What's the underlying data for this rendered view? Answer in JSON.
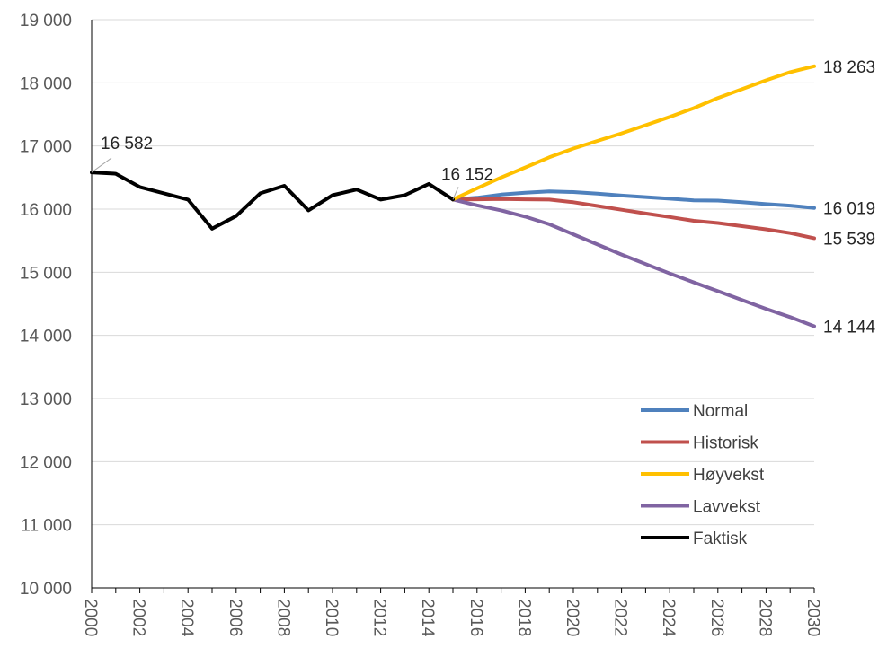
{
  "chart_data": {
    "type": "line",
    "title": "",
    "xlabel": "",
    "ylabel": "",
    "ylim": [
      10000,
      19000
    ],
    "xlim": [
      2000,
      2030
    ],
    "y_ticks": [
      "10 000",
      "11 000",
      "12 000",
      "13 000",
      "14 000",
      "15 000",
      "16 000",
      "17 000",
      "18 000",
      "19 000"
    ],
    "x_ticks": [
      "2000",
      "2002",
      "2004",
      "2006",
      "2008",
      "2010",
      "2012",
      "2014",
      "2016",
      "2018",
      "2020",
      "2022",
      "2024",
      "2026",
      "2028",
      "2030"
    ],
    "grid": "horizontal",
    "legend_position": "bottom-right",
    "series": [
      {
        "name": "Normal",
        "color": "#4F81BD",
        "x": [
          2015,
          2016,
          2017,
          2018,
          2019,
          2020,
          2021,
          2022,
          2023,
          2024,
          2025,
          2026,
          2027,
          2028,
          2029,
          2030
        ],
        "y": [
          16152,
          16180,
          16230,
          16260,
          16280,
          16270,
          16245,
          16215,
          16190,
          16165,
          16140,
          16135,
          16110,
          16080,
          16055,
          16019
        ]
      },
      {
        "name": "Historisk",
        "color": "#C0504D",
        "x": [
          2015,
          2016,
          2017,
          2018,
          2019,
          2020,
          2021,
          2022,
          2023,
          2024,
          2025,
          2026,
          2027,
          2028,
          2029,
          2030
        ],
        "y": [
          16152,
          16155,
          16160,
          16155,
          16150,
          16110,
          16050,
          15990,
          15930,
          15875,
          15815,
          15780,
          15730,
          15680,
          15620,
          15539
        ]
      },
      {
        "name": "Høyvekst",
        "color": "#FFC000",
        "x": [
          2015,
          2016,
          2017,
          2018,
          2019,
          2020,
          2021,
          2022,
          2023,
          2024,
          2025,
          2026,
          2027,
          2028,
          2029,
          2030
        ],
        "y": [
          16152,
          16330,
          16500,
          16660,
          16820,
          16960,
          17080,
          17200,
          17330,
          17460,
          17600,
          17760,
          17900,
          18040,
          18170,
          18263
        ]
      },
      {
        "name": "Lavvekst",
        "color": "#8064A2",
        "x": [
          2015,
          2016,
          2017,
          2018,
          2019,
          2020,
          2021,
          2022,
          2023,
          2024,
          2025,
          2026,
          2027,
          2028,
          2029,
          2030
        ],
        "y": [
          16152,
          16060,
          15980,
          15880,
          15760,
          15600,
          15440,
          15280,
          15130,
          14980,
          14840,
          14700,
          14560,
          14420,
          14290,
          14144
        ]
      },
      {
        "name": "Faktisk",
        "color": "#000000",
        "x": [
          2000,
          2001,
          2002,
          2003,
          2004,
          2005,
          2006,
          2007,
          2008,
          2009,
          2010,
          2011,
          2012,
          2013,
          2014,
          2015
        ],
        "y": [
          16582,
          16560,
          16350,
          16250,
          16150,
          15690,
          15890,
          16250,
          16370,
          15980,
          16220,
          16310,
          16150,
          16220,
          16400,
          16152
        ]
      }
    ],
    "annotations": [
      {
        "text": "16 582",
        "x": 2000,
        "y": 16582
      },
      {
        "text": "16 152",
        "x": 2015,
        "y": 16152
      },
      {
        "text": "18 263",
        "x": 2030,
        "y": 18263
      },
      {
        "text": "16 019",
        "x": 2030,
        "y": 16019
      },
      {
        "text": "15 539",
        "x": 2030,
        "y": 15539
      },
      {
        "text": "14 144",
        "x": 2030,
        "y": 14144
      }
    ]
  }
}
